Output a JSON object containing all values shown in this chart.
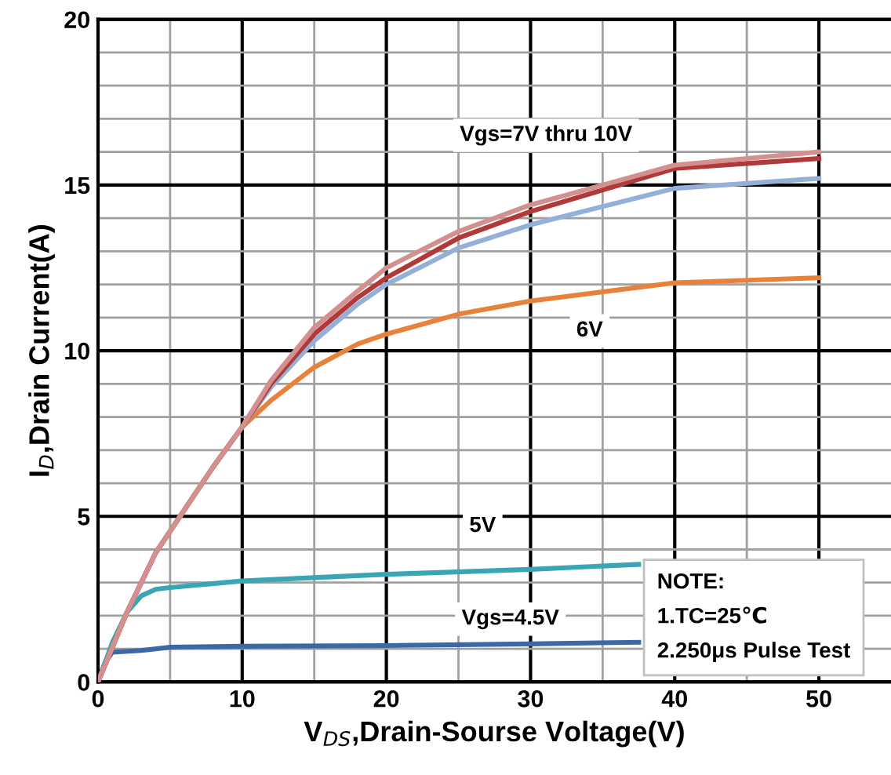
{
  "chart_data": {
    "type": "line",
    "xlabel": "V$_{DS}$,Drain-Sourse Voltage(V)",
    "ylabel": "I$_{D}$,Drain Current(A)",
    "xlim": [
      0,
      55
    ],
    "ylim": [
      0,
      20
    ],
    "xticks": [
      0,
      10,
      20,
      30,
      40,
      50
    ],
    "yticks": [
      0,
      5,
      10,
      15,
      20
    ],
    "grid": true,
    "marker": "none",
    "line_style": "solid",
    "legend": false,
    "series": [
      {
        "color": "#3d68a8",
        "x": [
          0,
          0.5,
          1,
          3,
          5,
          10,
          20,
          30,
          37.5
        ],
        "values": [
          0,
          0.6,
          0.9,
          0.95,
          1.05,
          1.08,
          1.1,
          1.15,
          1.2
        ]
      },
      {
        "color": "#3aa6b5",
        "x": [
          0,
          1,
          2,
          3,
          4,
          5,
          10,
          20,
          30,
          37.5
        ],
        "values": [
          0,
          1.2,
          2.1,
          2.6,
          2.8,
          2.85,
          3.05,
          3.25,
          3.4,
          3.55
        ]
      },
      {
        "color": "#e8823a",
        "x": [
          0,
          2,
          4,
          6,
          8,
          10,
          12,
          15,
          18,
          20,
          25,
          30,
          40,
          50
        ],
        "values": [
          0,
          2.1,
          3.9,
          5.2,
          6.5,
          7.7,
          8.5,
          9.5,
          10.2,
          10.5,
          11.1,
          11.5,
          12.05,
          12.2
        ]
      },
      {
        "color": "#95b0d8",
        "x": [
          0,
          2,
          4,
          6,
          8,
          10,
          12,
          15,
          18,
          20,
          25,
          30,
          40,
          50
        ],
        "values": [
          0,
          2.1,
          3.9,
          5.2,
          6.5,
          7.7,
          8.9,
          10.3,
          11.4,
          12.0,
          13.1,
          13.8,
          14.9,
          15.2
        ]
      },
      {
        "color": "#b03a3a",
        "x": [
          0,
          2,
          4,
          6,
          8,
          10,
          12,
          15,
          18,
          20,
          25,
          30,
          40,
          50
        ],
        "values": [
          0,
          2.1,
          3.9,
          5.2,
          6.5,
          7.7,
          9.0,
          10.5,
          11.6,
          12.2,
          13.4,
          14.2,
          15.5,
          15.8
        ]
      },
      {
        "color": "#d4908f",
        "x": [
          0,
          2,
          4,
          6,
          8,
          10,
          12,
          15,
          18,
          20,
          25,
          30,
          40,
          50
        ],
        "values": [
          0,
          2.1,
          3.9,
          5.2,
          6.5,
          7.7,
          9.1,
          10.7,
          11.8,
          12.5,
          13.6,
          14.4,
          15.6,
          16.0
        ]
      }
    ],
    "annotations": [
      "Vgs=7V thru 10V",
      "6V",
      "5V",
      "Vgs=4.5V",
      "NOTE:\n1.TC=25℃\n2.250μs Pulse Test"
    ]
  }
}
